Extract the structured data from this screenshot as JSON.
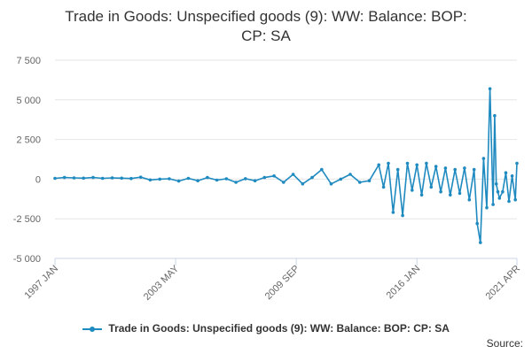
{
  "chart_data": {
    "type": "line",
    "title_lines": [
      "Trade in Goods: Unspecified goods (9): WW: Balance: BOP:",
      "CP: SA"
    ],
    "xlabel": "",
    "ylabel": "",
    "ylim": [
      -5000,
      7500
    ],
    "yticks": [
      "7 500",
      "5 000",
      "2 500",
      "0",
      "-2 500",
      "-5 000"
    ],
    "ytick_values": [
      7500,
      5000,
      2500,
      0,
      -2500,
      -5000
    ],
    "xlim": [
      "1997-01",
      "2021-04"
    ],
    "xticks": [
      "1997 JAN",
      "2003 MAY",
      "2009 SEP",
      "2016 JAN",
      "2021 APR"
    ],
    "xtick_dates": [
      "1997-01",
      "2003-05",
      "2009-09",
      "2016-01",
      "2021-04"
    ],
    "grid": true,
    "legend_position": "bottom",
    "series": [
      {
        "name": "Trade in Goods: Unspecified goods (9): WW: Balance: BOP: CP: SA",
        "color": "#1f8ac0",
        "x": [
          "1997-01",
          "1997-07",
          "1998-01",
          "1998-07",
          "1999-01",
          "1999-07",
          "2000-01",
          "2000-07",
          "2001-01",
          "2001-07",
          "2002-01",
          "2002-07",
          "2003-01",
          "2003-07",
          "2004-01",
          "2004-07",
          "2005-01",
          "2005-07",
          "2006-01",
          "2006-07",
          "2007-01",
          "2007-07",
          "2008-01",
          "2008-07",
          "2009-01",
          "2009-07",
          "2010-01",
          "2010-07",
          "2011-01",
          "2011-07",
          "2012-01",
          "2012-07",
          "2013-01",
          "2013-07",
          "2014-01",
          "2014-04",
          "2014-07",
          "2014-10",
          "2015-01",
          "2015-04",
          "2015-07",
          "2015-10",
          "2016-01",
          "2016-04",
          "2016-07",
          "2016-10",
          "2017-01",
          "2017-04",
          "2017-07",
          "2017-10",
          "2018-01",
          "2018-04",
          "2018-07",
          "2018-10",
          "2019-01",
          "2019-03",
          "2019-05",
          "2019-07",
          "2019-09",
          "2019-11",
          "2020-01",
          "2020-02",
          "2020-03",
          "2020-04",
          "2020-05",
          "2020-07",
          "2020-09",
          "2020-11",
          "2021-01",
          "2021-03",
          "2021-04"
        ],
        "y": [
          50,
          100,
          80,
          60,
          100,
          50,
          80,
          60,
          40,
          120,
          -50,
          0,
          20,
          -120,
          50,
          -100,
          100,
          -60,
          20,
          -200,
          30,
          -100,
          100,
          200,
          -200,
          300,
          -300,
          100,
          600,
          -300,
          0,
          300,
          -200,
          -100,
          900,
          -500,
          1000,
          -2100,
          600,
          -2300,
          1000,
          -700,
          900,
          -1000,
          1000,
          -500,
          800,
          -800,
          700,
          -1000,
          600,
          -900,
          700,
          -1300,
          600,
          -2800,
          -4000,
          1300,
          -1800,
          5700,
          -1600,
          4000,
          -300,
          -800,
          -1200,
          -800,
          400,
          -1400,
          200,
          -1300,
          1000
        ]
      }
    ],
    "legend_label": "Trade in Goods: Unspecified goods (9): WW: Balance: BOP: CP: SA",
    "source_label": "Source:"
  }
}
